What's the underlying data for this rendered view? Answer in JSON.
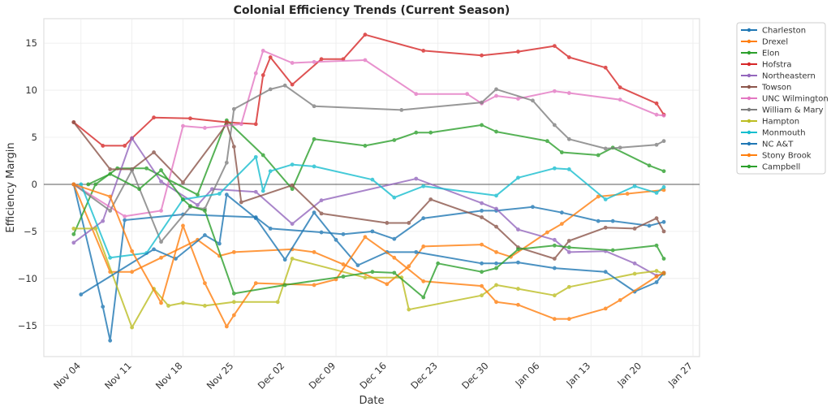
{
  "chart_data": {
    "type": "line",
    "title": "Colonial Efficiency Trends (Current Season)",
    "xlabel": "Date",
    "ylabel": "Efficiency Margin",
    "x_unit": "days since Nov 04",
    "xlim": [
      -5.1,
      84.9
    ],
    "ylim": [
      -18.3,
      17.6
    ],
    "x_ticks": [
      {
        "label": "Nov 04",
        "day": 0
      },
      {
        "label": "Nov 11",
        "day": 7
      },
      {
        "label": "Nov 18",
        "day": 14
      },
      {
        "label": "Nov 25",
        "day": 21
      },
      {
        "label": "Dec 02",
        "day": 28
      },
      {
        "label": "Dec 09",
        "day": 35
      },
      {
        "label": "Dec 16",
        "day": 42
      },
      {
        "label": "Dec 23",
        "day": 49
      },
      {
        "label": "Dec 30",
        "day": 56
      },
      {
        "label": "Jan 06",
        "day": 63
      },
      {
        "label": "Jan 13",
        "day": 70
      },
      {
        "label": "Jan 20",
        "day": 77
      },
      {
        "label": "Jan 27",
        "day": 84
      }
    ],
    "y_ticks": [
      15,
      10,
      5,
      0,
      -5,
      -10,
      -15
    ],
    "grid": true,
    "zero_line": true,
    "legend_position": "outside-top-right",
    "series": [
      {
        "name": "Charleston",
        "color": "#1f77b4",
        "x": [
          -1,
          3,
          4,
          6,
          14,
          24,
          26,
          33,
          36,
          40,
          43,
          47,
          55,
          57,
          62,
          66,
          71,
          73,
          78,
          80
        ],
        "y": [
          0,
          -13.0,
          -16.6,
          -3.8,
          -3.2,
          -3.5,
          -4.7,
          -5.1,
          -5.3,
          -5.0,
          -5.8,
          -3.6,
          -2.8,
          -2.8,
          -2.4,
          -3.0,
          -3.9,
          -3.9,
          -4.4,
          -4.0
        ]
      },
      {
        "name": "Drexel",
        "color": "#ff7f0e",
        "x": [
          -1,
          4,
          7,
          11,
          16,
          19,
          21,
          29,
          32,
          36,
          42,
          45,
          47,
          55,
          57,
          59,
          64,
          66,
          71,
          75,
          80
        ],
        "y": [
          0,
          -9.3,
          -9.3,
          -7.8,
          -5.9,
          -7.6,
          -7.2,
          -6.9,
          -7.2,
          -8.5,
          -10.6,
          -8.7,
          -6.6,
          -6.4,
          -7.2,
          -7.7,
          -5.1,
          -4.2,
          -1.3,
          -1.0,
          -0.6
        ]
      },
      {
        "name": "Elon",
        "color": "#2ca02c",
        "x": [
          -1,
          2,
          5,
          9,
          16,
          20,
          25,
          29,
          32,
          39,
          43,
          46,
          48,
          55,
          57,
          64,
          66,
          71,
          73,
          78,
          80
        ],
        "y": [
          -5.3,
          0,
          1.7,
          1.7,
          -1.1,
          6.8,
          3.1,
          -0.5,
          4.8,
          4.1,
          4.7,
          5.5,
          5.5,
          6.3,
          5.6,
          4.6,
          3.4,
          3.1,
          3.9,
          2.0,
          1.4
        ]
      },
      {
        "name": "Hofstra",
        "color": "#d62728",
        "x": [
          -1,
          3,
          6,
          7,
          10,
          15,
          20,
          24,
          25,
          26,
          29,
          33,
          36,
          39,
          47,
          55,
          60,
          65,
          67,
          72,
          74,
          79,
          80
        ],
        "y": [
          6.6,
          4.1,
          4.1,
          4.9,
          7.1,
          7.0,
          6.6,
          6.4,
          11.6,
          13.5,
          10.6,
          13.3,
          13.3,
          15.9,
          14.2,
          13.7,
          14.1,
          14.7,
          13.5,
          12.4,
          10.3,
          8.6,
          7.4
        ]
      },
      {
        "name": "Northeastern",
        "color": "#9467bd",
        "x": [
          -1,
          3,
          7,
          11,
          16,
          18,
          24,
          29,
          33,
          46,
          55,
          57,
          60,
          65,
          67,
          72,
          76,
          79,
          80
        ],
        "y": [
          -6.2,
          -3.9,
          4.9,
          0.3,
          -2.2,
          -0.5,
          -0.8,
          -4.2,
          -1.7,
          0.6,
          -2.0,
          -2.6,
          -4.8,
          -5.9,
          -7.2,
          -7.1,
          -8.4,
          -9.7,
          -9.5
        ]
      },
      {
        "name": "Towson",
        "color": "#8c564b",
        "x": [
          -1,
          4,
          7,
          10,
          14,
          20,
          21,
          22,
          29,
          33,
          42,
          45,
          48,
          55,
          57,
          60,
          65,
          67,
          72,
          76,
          79,
          80
        ],
        "y": [
          6.6,
          1.6,
          1.6,
          3.4,
          0.2,
          6.4,
          4.0,
          -1.9,
          -0.1,
          -3.1,
          -4.1,
          -4.1,
          -1.6,
          -3.5,
          -4.5,
          -6.7,
          -7.9,
          -6.0,
          -4.6,
          -4.7,
          -3.6,
          -5.0
        ]
      },
      {
        "name": "UNC Wilmington",
        "color": "#e377c2",
        "x": [
          -1,
          6,
          11,
          14,
          17,
          22,
          24,
          25,
          29,
          32,
          39,
          46,
          53,
          55,
          57,
          60,
          65,
          67,
          74,
          79,
          80
        ],
        "y": [
          0,
          -3.4,
          -2.8,
          6.2,
          6.0,
          6.4,
          11.8,
          14.2,
          12.9,
          13.0,
          13.2,
          9.6,
          9.6,
          8.6,
          9.4,
          9.1,
          9.9,
          9.7,
          9.0,
          7.4,
          7.3
        ]
      },
      {
        "name": "William & Mary",
        "color": "#7f7f7f",
        "x": [
          -1,
          4,
          7,
          11,
          15,
          17,
          20,
          21,
          26,
          28,
          32,
          44,
          55,
          57,
          62,
          65,
          67,
          72,
          74,
          79,
          80
        ],
        "y": [
          0,
          -2.8,
          1.5,
          -6.1,
          -2.4,
          -2.6,
          2.3,
          8.0,
          10.1,
          10.5,
          8.3,
          7.9,
          8.7,
          10.1,
          8.9,
          6.3,
          4.8,
          3.8,
          3.9,
          4.2,
          4.6
        ]
      },
      {
        "name": "Hampton",
        "color": "#bcbd22",
        "x": [
          -1,
          2,
          7,
          10,
          12,
          14,
          17,
          21,
          27,
          29,
          39,
          44,
          45,
          55,
          57,
          60,
          65,
          67,
          76,
          79,
          80
        ],
        "y": [
          -4.7,
          -4.7,
          -15.2,
          -11.1,
          -12.9,
          -12.6,
          -12.9,
          -12.5,
          -12.5,
          -7.9,
          -9.9,
          -9.9,
          -13.3,
          -11.8,
          -10.7,
          -11.1,
          -11.8,
          -10.9,
          -9.5,
          -9.2,
          -9.5
        ]
      },
      {
        "name": "Monmouth",
        "color": "#17becf",
        "x": [
          0,
          4,
          9,
          14,
          19,
          24,
          25,
          26,
          29,
          32,
          40,
          43,
          47,
          57,
          60,
          65,
          67,
          72,
          76,
          79,
          80
        ],
        "y": [
          0,
          -7.8,
          -7.3,
          -1.6,
          -1.0,
          2.9,
          -0.7,
          1.4,
          2.1,
          1.9,
          0.5,
          -1.4,
          -0.2,
          -1.2,
          0.7,
          1.7,
          1.6,
          -1.6,
          -0.2,
          -0.9,
          -0.3
        ]
      },
      {
        "name": "NC A&T",
        "color": "#1f77b4",
        "x": [
          0,
          10,
          13,
          17,
          19,
          20,
          24,
          28,
          32,
          35,
          38,
          42,
          46,
          55,
          57,
          60,
          65,
          72,
          76,
          79,
          80
        ],
        "y": [
          -11.7,
          -6.9,
          -7.9,
          -5.4,
          -6.3,
          -1.1,
          -3.6,
          -8.0,
          -3.0,
          -5.9,
          -8.6,
          -7.2,
          -7.2,
          -8.4,
          -8.4,
          -8.3,
          -8.9,
          -9.3,
          -11.4,
          -10.4,
          -9.4
        ]
      },
      {
        "name": "Stony Brook",
        "color": "#ff7f0e",
        "x": [
          -1,
          4,
          7,
          11,
          14,
          17,
          20,
          21,
          24,
          32,
          35,
          39,
          43,
          47,
          55,
          57,
          60,
          65,
          67,
          72,
          74,
          79,
          80
        ],
        "y": [
          0,
          -1.3,
          -7.1,
          -12.6,
          -4.4,
          -10.5,
          -15.1,
          -13.9,
          -10.5,
          -10.7,
          -10.1,
          -5.6,
          -7.8,
          -10.3,
          -10.8,
          -12.5,
          -12.8,
          -14.3,
          -14.3,
          -13.2,
          -12.3,
          -9.8,
          -9.4
        ]
      },
      {
        "name": "Campbell",
        "color": "#2ca02c",
        "x": [
          1,
          4,
          8,
          11,
          14,
          15,
          17,
          21,
          28,
          36,
          40,
          43,
          47,
          49,
          55,
          57,
          60,
          65,
          67,
          73,
          79,
          80
        ],
        "y": [
          0,
          1.1,
          -0.5,
          1.5,
          -1.6,
          -2.3,
          -2.8,
          -11.6,
          -10.7,
          -9.8,
          -9.3,
          -9.4,
          -12.0,
          -8.4,
          -9.3,
          -8.9,
          -6.9,
          -6.5,
          -6.7,
          -7.0,
          -6.5,
          -7.9
        ]
      }
    ]
  }
}
